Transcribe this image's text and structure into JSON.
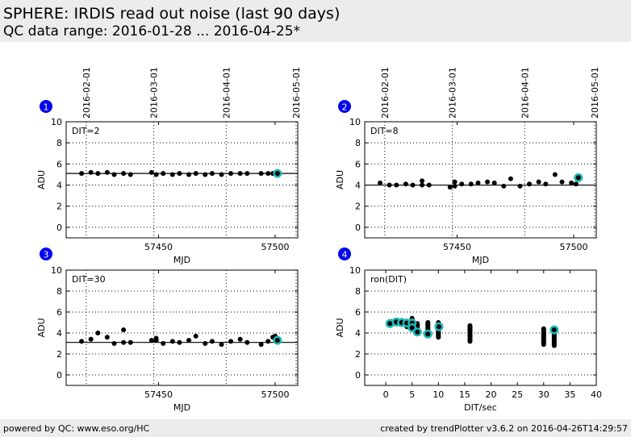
{
  "header": {
    "title": "SPHERE: IRDIS read out noise (last 90 days)",
    "subtitle": "QC data range: 2016-01-28 ... 2016-04-25*"
  },
  "footer": {
    "left": "powered by QC: www.eso.org/HC",
    "right": "created by trendPlotter v3.6.2 on 2016-04-26T14:29:57"
  },
  "colors": {
    "highlight": "#1bb8b8",
    "marker": "#000000",
    "badge": "#0000ee"
  },
  "chart_data": [
    {
      "type": "scatter",
      "id": "1",
      "label": "DIT=2",
      "xlabel": "MJD",
      "ylabel": "ADU",
      "xlim": [
        57410.4,
        57509.7
      ],
      "ylim": [
        -1,
        10
      ],
      "xticks": [
        57450,
        57500
      ],
      "yticks": [
        0,
        2,
        4,
        6,
        8,
        10
      ],
      "date_ticks": [
        {
          "label": "2016-02-01",
          "mjd": 57419
        },
        {
          "label": "2016-03-01",
          "mjd": 57448
        },
        {
          "label": "2016-04-01",
          "mjd": 57479
        },
        {
          "label": "2016-05-01",
          "mjd": 57509
        }
      ],
      "median": 5.1,
      "x": [
        57417,
        57421,
        57424,
        57428,
        57431,
        57435,
        57438,
        57447,
        57449,
        57452,
        57456,
        57459,
        57463,
        57466,
        57470,
        57473,
        57477,
        57481,
        57485,
        57488,
        57494,
        57497,
        57499
      ],
      "y": [
        5.1,
        5.2,
        5.1,
        5.2,
        5.0,
        5.1,
        5.0,
        5.2,
        5.0,
        5.1,
        5.0,
        5.1,
        5.0,
        5.1,
        5.0,
        5.1,
        5.0,
        5.1,
        5.1,
        5.1,
        5.1,
        5.1,
        5.1
      ],
      "highlight": {
        "x": 57501,
        "y": 5.1
      }
    },
    {
      "type": "scatter",
      "id": "2",
      "label": "DIT=8",
      "xlabel": "MJD",
      "ylabel": "ADU",
      "xlim": [
        57410.4,
        57509.7
      ],
      "ylim": [
        -1,
        10
      ],
      "xticks": [
        57450,
        57500
      ],
      "yticks": [
        0,
        2,
        4,
        6,
        8,
        10
      ],
      "date_ticks": [
        {
          "label": "2016-02-01",
          "mjd": 57419
        },
        {
          "label": "2016-03-01",
          "mjd": 57448
        },
        {
          "label": "2016-04-01",
          "mjd": 57479
        },
        {
          "label": "2016-05-01",
          "mjd": 57509
        }
      ],
      "median": 4.0,
      "x": [
        57417,
        57421,
        57424,
        57428,
        57431,
        57435,
        57435,
        57438,
        57447,
        57449,
        57449,
        57452,
        57456,
        57459,
        57463,
        57466,
        57470,
        57473,
        57477,
        57481,
        57485,
        57488,
        57492,
        57495,
        57499,
        57501
      ],
      "y": [
        4.2,
        4.0,
        4.0,
        4.1,
        4.0,
        4.4,
        4.0,
        4.0,
        3.8,
        4.3,
        3.9,
        4.1,
        4.1,
        4.2,
        4.3,
        4.2,
        3.9,
        4.6,
        3.9,
        4.1,
        4.3,
        4.1,
        5.0,
        4.3,
        4.2,
        4.1
      ],
      "highlight": {
        "x": 57502,
        "y": 4.7
      }
    },
    {
      "type": "scatter",
      "id": "3",
      "label": "DIT=30",
      "xlabel": "MJD",
      "ylabel": "ADU",
      "xlim": [
        57410.4,
        57509.7
      ],
      "ylim": [
        -1,
        10
      ],
      "xticks": [
        57450,
        57500
      ],
      "yticks": [
        0,
        2,
        4,
        6,
        8,
        10
      ],
      "date_ticks": [
        {
          "label": "",
          "mjd": 57419
        },
        {
          "label": "",
          "mjd": 57448
        },
        {
          "label": "",
          "mjd": 57479
        },
        {
          "label": "",
          "mjd": 57509
        }
      ],
      "median": 3.1,
      "x": [
        57417,
        57421,
        57424,
        57428,
        57431,
        57435,
        57435,
        57438,
        57447,
        57449,
        57449,
        57452,
        57456,
        57459,
        57463,
        57466,
        57470,
        57473,
        57477,
        57481,
        57485,
        57488,
        57494,
        57497,
        57499,
        57500
      ],
      "y": [
        3.2,
        3.4,
        4.0,
        3.6,
        3.0,
        4.3,
        3.1,
        3.1,
        3.3,
        3.5,
        3.3,
        3.0,
        3.2,
        3.1,
        3.3,
        3.7,
        3.0,
        3.2,
        2.9,
        3.2,
        3.4,
        3.1,
        2.9,
        3.2,
        3.6,
        3.7
      ],
      "highlight": {
        "x": 57501,
        "y": 3.3
      }
    },
    {
      "type": "scatter",
      "id": "4",
      "label": "ron(DIT)",
      "xlabel": "DIT/sec",
      "ylabel": "ADU",
      "xlim": [
        -4,
        40
      ],
      "ylim": [
        -1,
        10
      ],
      "xticks": [
        0,
        5,
        10,
        15,
        20,
        25,
        30,
        35,
        40
      ],
      "yticks": [
        0,
        2,
        4,
        6,
        8,
        10
      ],
      "columns": [
        {
          "dit": 1,
          "min": 4.8,
          "max": 5.1
        },
        {
          "dit": 2,
          "min": 4.9,
          "max": 5.2
        },
        {
          "dit": 3,
          "min": 4.8,
          "max": 5.2
        },
        {
          "dit": 4,
          "min": 4.6,
          "max": 5.1
        },
        {
          "dit": 5,
          "min": 4.3,
          "max": 5.4
        },
        {
          "dit": 6,
          "min": 4.0,
          "max": 4.9
        },
        {
          "dit": 8,
          "min": 3.8,
          "max": 5.0
        },
        {
          "dit": 10,
          "min": 3.6,
          "max": 5.0
        },
        {
          "dit": 16,
          "min": 3.2,
          "max": 4.7
        },
        {
          "dit": 30,
          "min": 2.9,
          "max": 4.4
        },
        {
          "dit": 32,
          "min": 2.8,
          "max": 4.3
        }
      ],
      "highlight": [
        {
          "x": 0.8,
          "y": 4.9
        },
        {
          "x": 2,
          "y": 5.05
        },
        {
          "x": 3,
          "y": 5.0
        },
        {
          "x": 4,
          "y": 4.95
        },
        {
          "x": 5,
          "y": 4.95
        },
        {
          "x": 5,
          "y": 4.5
        },
        {
          "x": 6,
          "y": 4.1
        },
        {
          "x": 8,
          "y": 3.9
        },
        {
          "x": 10.1,
          "y": 4.6
        },
        {
          "x": 32,
          "y": 4.3
        }
      ]
    }
  ]
}
